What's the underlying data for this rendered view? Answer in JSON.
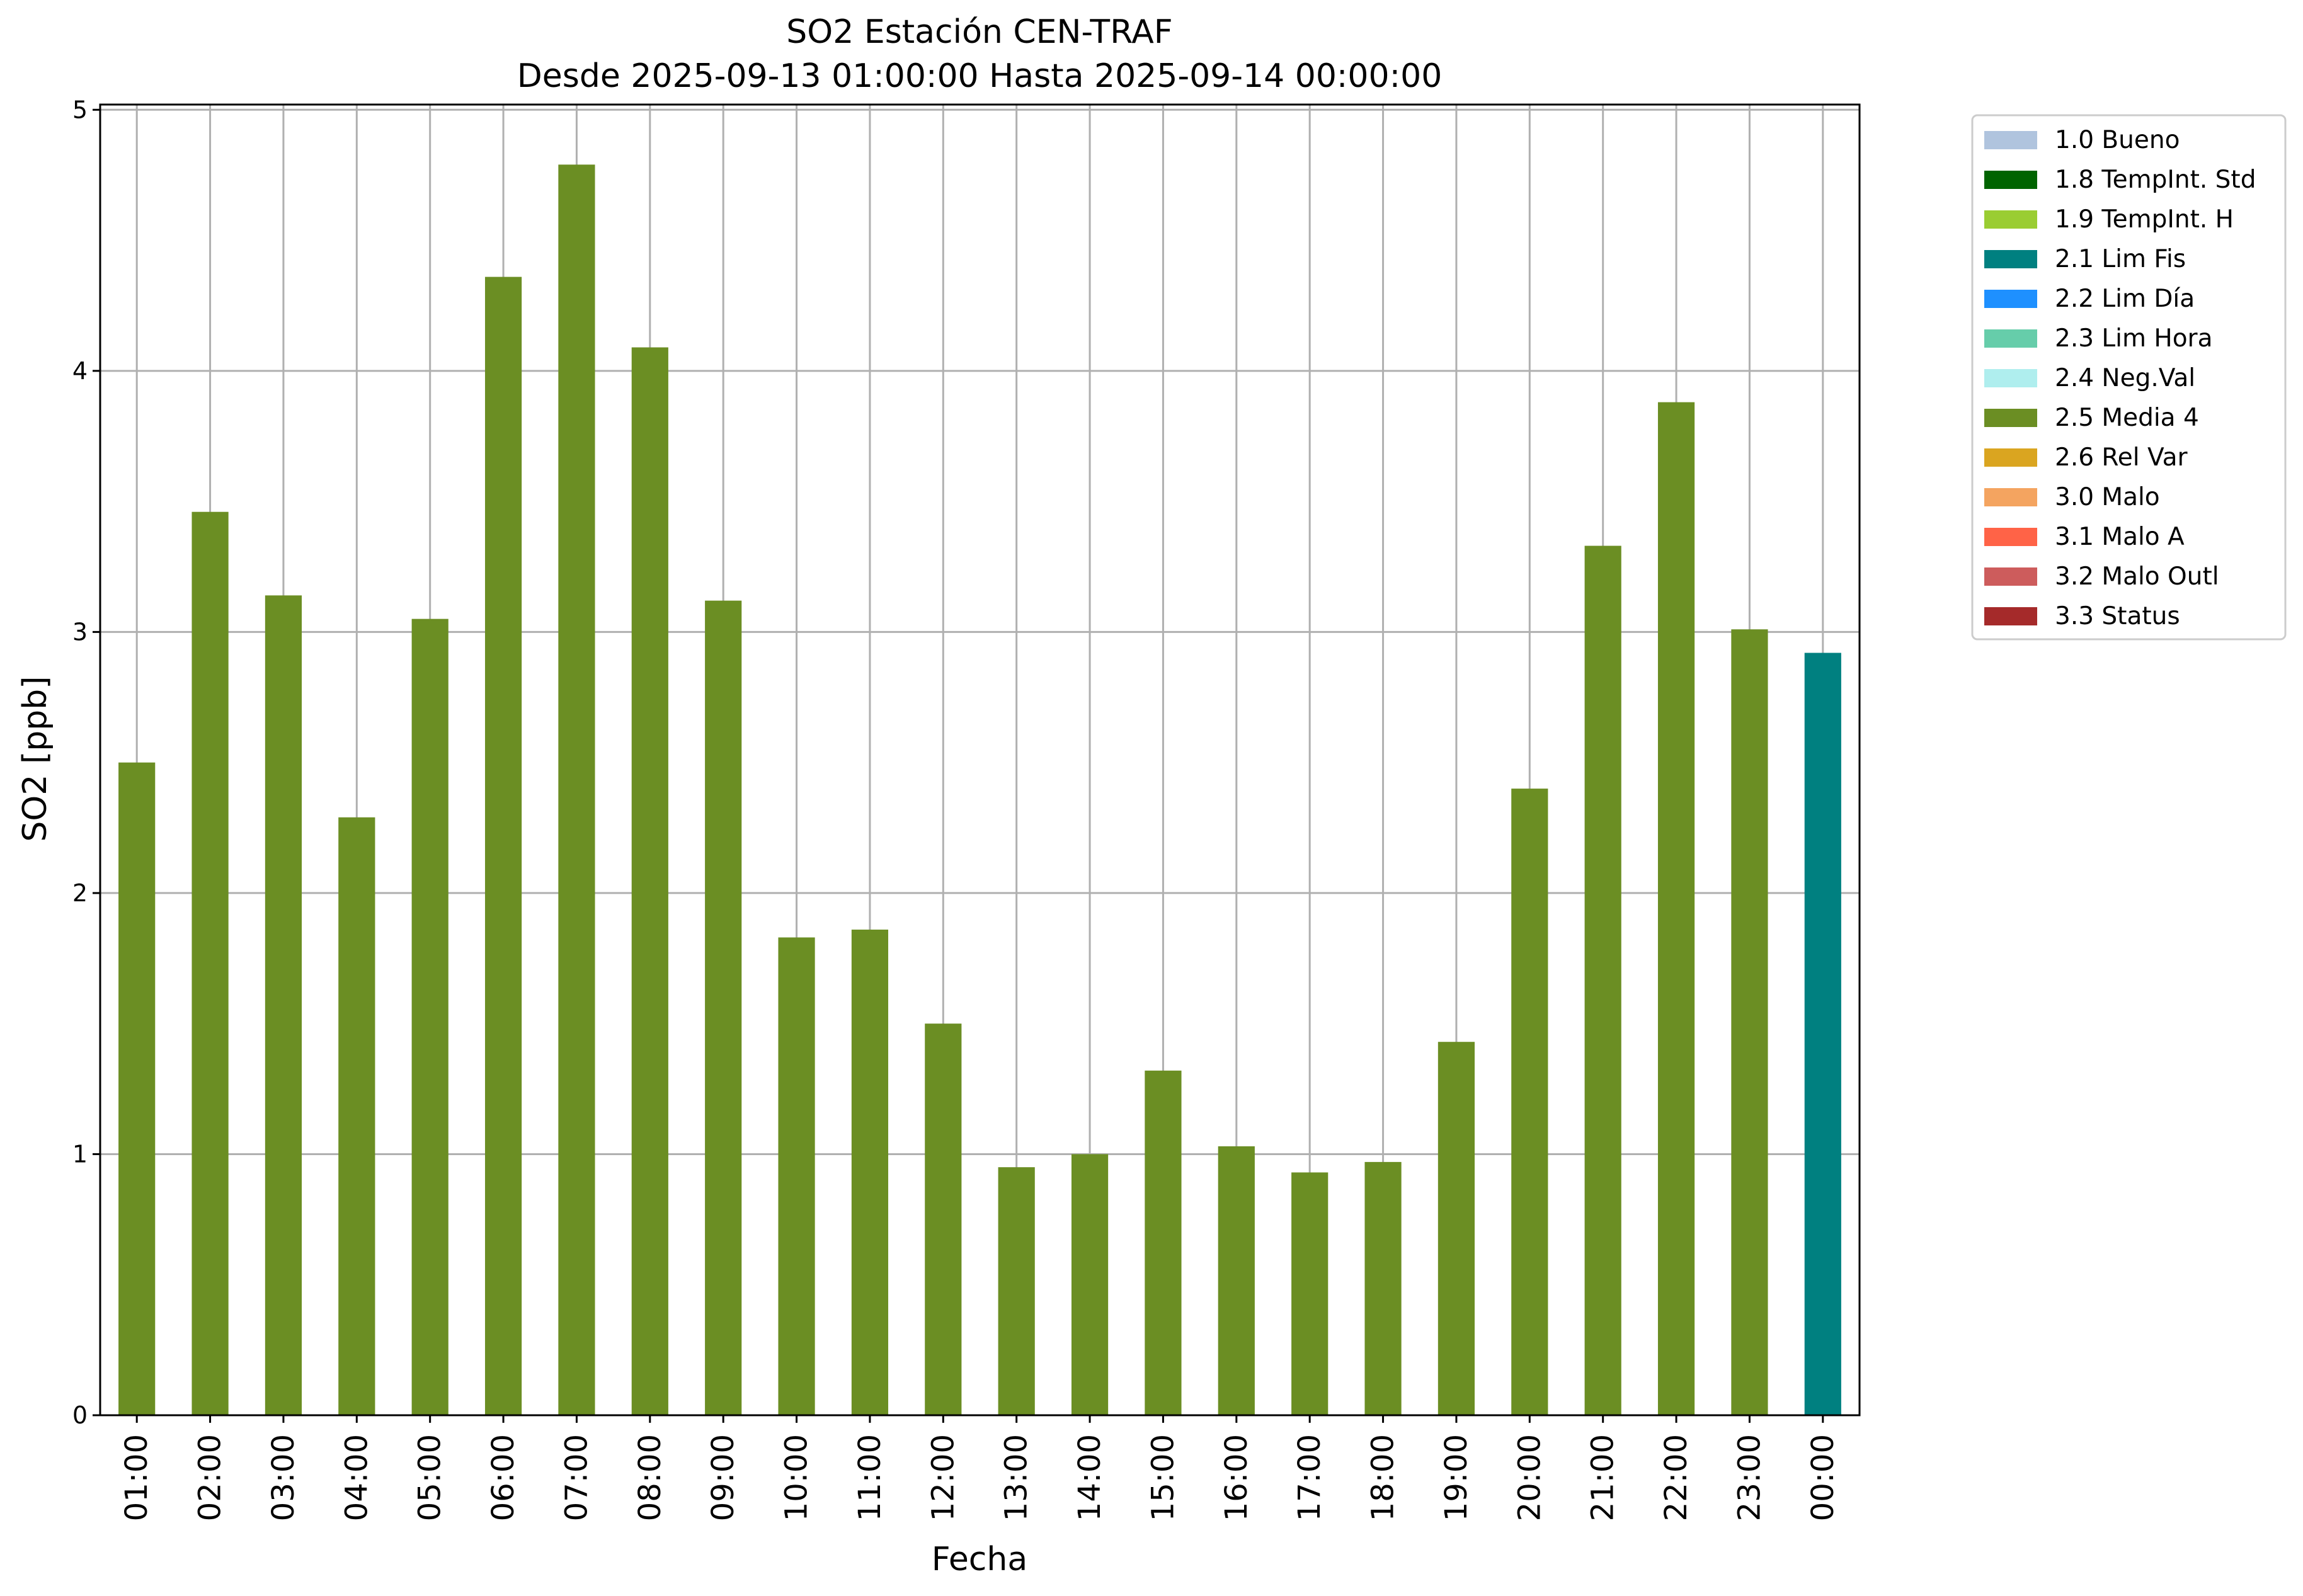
{
  "chart_data": {
    "type": "bar",
    "title": "SO2 Estación CEN-TRAF",
    "subtitle": "Desde 2025-09-13 01:00:00 Hasta 2025-09-14 00:00:00",
    "xlabel": "Fecha",
    "ylabel": "SO2 [ppb]",
    "ylim": [
      0,
      5.02
    ],
    "yticks": [
      "0",
      "1",
      "2",
      "3",
      "4",
      "5"
    ],
    "grid": true,
    "legend_position": "outside-top-right",
    "categories": [
      "01:00",
      "02:00",
      "03:00",
      "04:00",
      "05:00",
      "06:00",
      "07:00",
      "08:00",
      "09:00",
      "10:00",
      "11:00",
      "12:00",
      "13:00",
      "14:00",
      "15:00",
      "16:00",
      "17:00",
      "18:00",
      "19:00",
      "20:00",
      "21:00",
      "22:00",
      "23:00",
      "00:00"
    ],
    "values": [
      2.5,
      3.46,
      3.14,
      2.29,
      3.05,
      4.36,
      4.79,
      4.09,
      3.12,
      1.83,
      1.86,
      1.5,
      0.95,
      1.0,
      1.32,
      1.03,
      0.93,
      0.97,
      1.43,
      2.4,
      3.33,
      3.88,
      3.01,
      2.92
    ],
    "bar_flags": [
      "2.5 Media 4",
      "2.5 Media 4",
      "2.5 Media 4",
      "2.5 Media 4",
      "2.5 Media 4",
      "2.5 Media 4",
      "2.5 Media 4",
      "2.5 Media 4",
      "2.5 Media 4",
      "2.5 Media 4",
      "2.5 Media 4",
      "2.5 Media 4",
      "2.5 Media 4",
      "2.5 Media 4",
      "2.5 Media 4",
      "2.5 Media 4",
      "2.5 Media 4",
      "2.5 Media 4",
      "2.5 Media 4",
      "2.5 Media 4",
      "2.5 Media 4",
      "2.5 Media 4",
      "2.5 Media 4",
      "2.1 Lim Fis"
    ],
    "legend": [
      {
        "label": "1.0 Bueno",
        "color": "#b0c4de"
      },
      {
        "label": "1.8 TempInt. Std",
        "color": "#006400"
      },
      {
        "label": "1.9 TempInt. H",
        "color": "#9acd32"
      },
      {
        "label": "2.1 Lim Fis",
        "color": "#008080"
      },
      {
        "label": "2.2 Lim Día",
        "color": "#1e90ff"
      },
      {
        "label": "2.3 Lim Hora",
        "color": "#66cdaa"
      },
      {
        "label": "2.4 Neg.Val",
        "color": "#afeeee"
      },
      {
        "label": "2.5 Media 4",
        "color": "#6b8e23"
      },
      {
        "label": "2.6 Rel Var",
        "color": "#daa520"
      },
      {
        "label": "3.0 Malo",
        "color": "#f4a460"
      },
      {
        "label": "3.1 Malo A",
        "color": "#ff6347"
      },
      {
        "label": "3.2 Malo Outl",
        "color": "#cd5c5c"
      },
      {
        "label": "3.3 Status",
        "color": "#a52a2a"
      }
    ]
  }
}
